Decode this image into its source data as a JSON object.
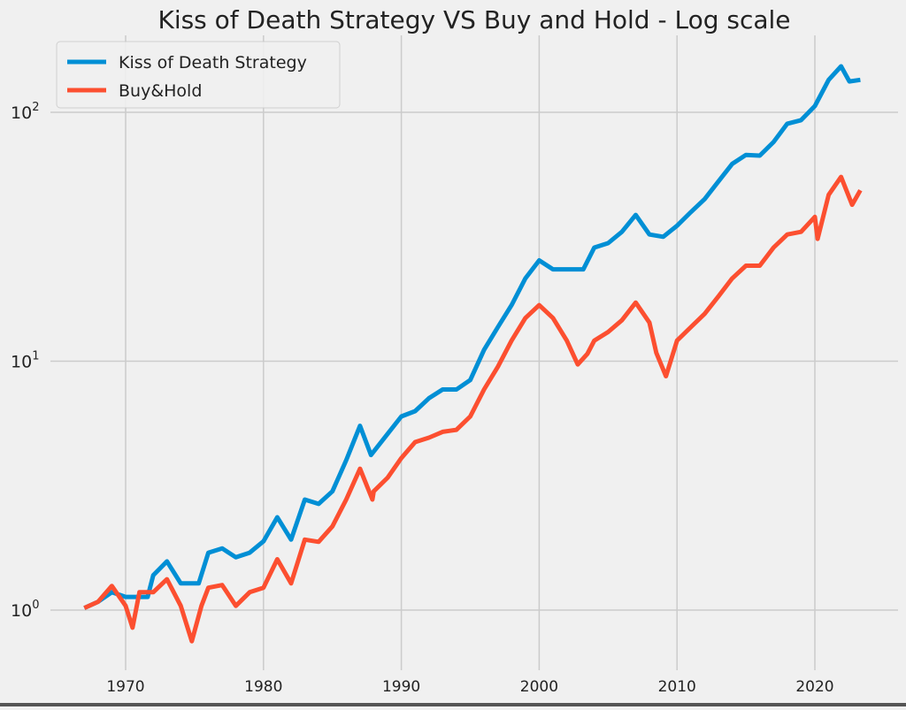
{
  "chart_data": {
    "type": "line",
    "title": "Kiss of Death Strategy VS Buy and Hold - Log scale",
    "xlabel": "",
    "ylabel": "",
    "yscale": "log",
    "xlim": [
      1964.9,
      2026.3
    ],
    "ylim": [
      0.62,
      210
    ],
    "x_ticks": [
      1970,
      1980,
      1990,
      2000,
      2010,
      2020
    ],
    "y_ticks": [
      {
        "value": 1,
        "label_base": "10",
        "label_exp": "0"
      },
      {
        "value": 10,
        "label_base": "10",
        "label_exp": "1"
      },
      {
        "value": 100,
        "label_base": "10",
        "label_exp": "2"
      }
    ],
    "grid": true,
    "legend_position": "top-left",
    "series": [
      {
        "name": "Kiss of Death Strategy",
        "color": "#008fd5",
        "x": [
          1967,
          1968,
          1969,
          1970,
          1971,
          1971.6,
          1972,
          1973,
          1974,
          1975.3,
          1976,
          1977,
          1978,
          1979,
          1980,
          1981,
          1982,
          1983,
          1984,
          1985,
          1986,
          1987,
          1987.8,
          1989,
          1990,
          1991,
          1992,
          1993,
          1994,
          1995,
          1996,
          1997,
          1998,
          1999,
          2000,
          2001,
          2003.2,
          2004,
          2005,
          2006,
          2007,
          2008,
          2009,
          2010,
          2011,
          2012,
          2013,
          2014,
          2015,
          2016,
          2017,
          2018,
          2019,
          2020,
          2021,
          2021.9,
          2022.5,
          2023.3
        ],
        "y": [
          1.02,
          1.08,
          1.18,
          1.13,
          1.13,
          1.13,
          1.38,
          1.57,
          1.28,
          1.28,
          1.7,
          1.77,
          1.63,
          1.7,
          1.89,
          2.36,
          1.92,
          2.78,
          2.67,
          3.0,
          4.0,
          5.5,
          4.2,
          5.1,
          6.0,
          6.3,
          7.1,
          7.7,
          7.7,
          8.4,
          11.1,
          13.7,
          16.8,
          21.5,
          25.4,
          23.4,
          23.4,
          28.6,
          29.8,
          33.1,
          38.7,
          32.3,
          31.6,
          35,
          39.7,
          44.8,
          52.7,
          62,
          67.4,
          67,
          76,
          90,
          93,
          106,
          135,
          153,
          133,
          135
        ]
      },
      {
        "name": "Buy&Hold",
        "color": "#fc4f30",
        "x": [
          1967,
          1968,
          1969,
          1970,
          1970.5,
          1971,
          1972,
          1973,
          1974,
          1974.8,
          1975.5,
          1976,
          1977,
          1978,
          1979,
          1980,
          1981,
          1982,
          1983,
          1984,
          1985,
          1986,
          1987,
          1987.9,
          1988,
          1989,
          1990,
          1991,
          1992,
          1993,
          1994,
          1995,
          1996,
          1997,
          1998,
          1999,
          2000,
          2001,
          2002,
          2002.8,
          2003.5,
          2004,
          2005,
          2006,
          2007,
          2008,
          2008.5,
          2009.2,
          2010,
          2011,
          2012,
          2013,
          2014,
          2015,
          2016,
          2017,
          2018,
          2019,
          2020,
          2020.2,
          2021,
          2021.9,
          2022.7,
          2023.3
        ],
        "y": [
          1.02,
          1.08,
          1.25,
          1.04,
          0.85,
          1.18,
          1.18,
          1.33,
          1.04,
          0.75,
          1.04,
          1.23,
          1.26,
          1.04,
          1.18,
          1.23,
          1.6,
          1.28,
          1.92,
          1.88,
          2.17,
          2.78,
          3.7,
          2.78,
          3.0,
          3.4,
          4.08,
          4.73,
          4.93,
          5.2,
          5.3,
          6.0,
          7.7,
          9.5,
          12.1,
          14.9,
          16.8,
          14.9,
          12.1,
          9.7,
          10.7,
          12.1,
          13.1,
          14.6,
          17.2,
          14.3,
          10.8,
          8.7,
          12.1,
          13.7,
          15.5,
          18.2,
          21.5,
          24.2,
          24.2,
          28.6,
          32.3,
          33.1,
          38,
          31,
          46.6,
          55,
          42.5,
          48.6
        ]
      }
    ]
  }
}
